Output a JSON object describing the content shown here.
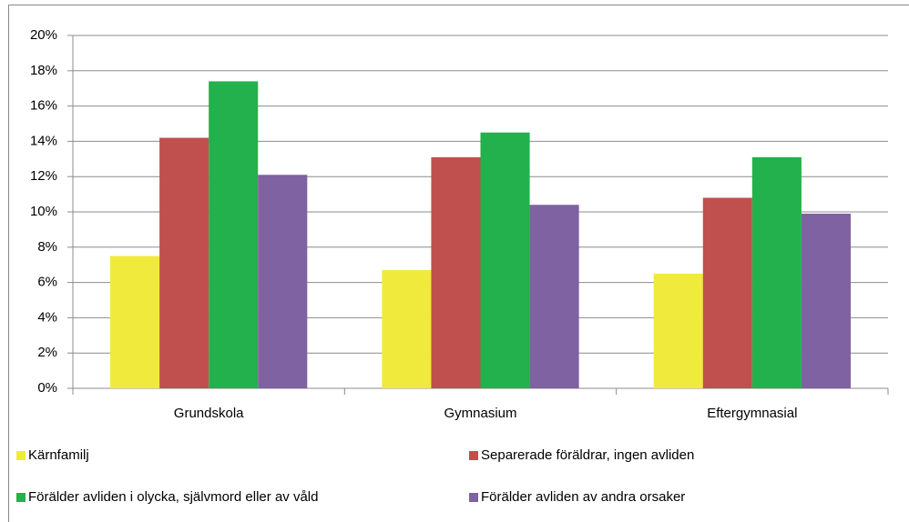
{
  "chart_data": {
    "type": "bar",
    "categories": [
      "Grundskola",
      "Gymnasium",
      "Eftergymnasial"
    ],
    "series": [
      {
        "name": "Kärnfamilj",
        "color": "#f0ea3c",
        "values": [
          7.5,
          6.7,
          6.5
        ]
      },
      {
        "name": "Separerade föräldrar, ingen avliden",
        "color": "#c0504d",
        "values": [
          14.2,
          13.1,
          10.8
        ]
      },
      {
        "name": "Förälder avliden i olycka, självmord eller  av våld",
        "color": "#22b14c",
        "values": [
          17.4,
          14.5,
          13.1
        ]
      },
      {
        "name": "Förälder avliden av andra orsaker",
        "color": "#7f62a1",
        "values": [
          12.1,
          10.4,
          9.9
        ]
      }
    ],
    "ylim": [
      0,
      20
    ],
    "yticks": [
      {
        "value": 0,
        "label": "0%"
      },
      {
        "value": 2,
        "label": "2%"
      },
      {
        "value": 4,
        "label": "4%"
      },
      {
        "value": 6,
        "label": "6%"
      },
      {
        "value": 8,
        "label": "8%"
      },
      {
        "value": 10,
        "label": "10%"
      },
      {
        "value": 12,
        "label": "12%"
      },
      {
        "value": 14,
        "label": "14%"
      },
      {
        "value": 16,
        "label": "16%"
      },
      {
        "value": 18,
        "label": "18%"
      },
      {
        "value": 20,
        "label": "20%"
      }
    ],
    "grid": true,
    "legend": "bottom"
  }
}
